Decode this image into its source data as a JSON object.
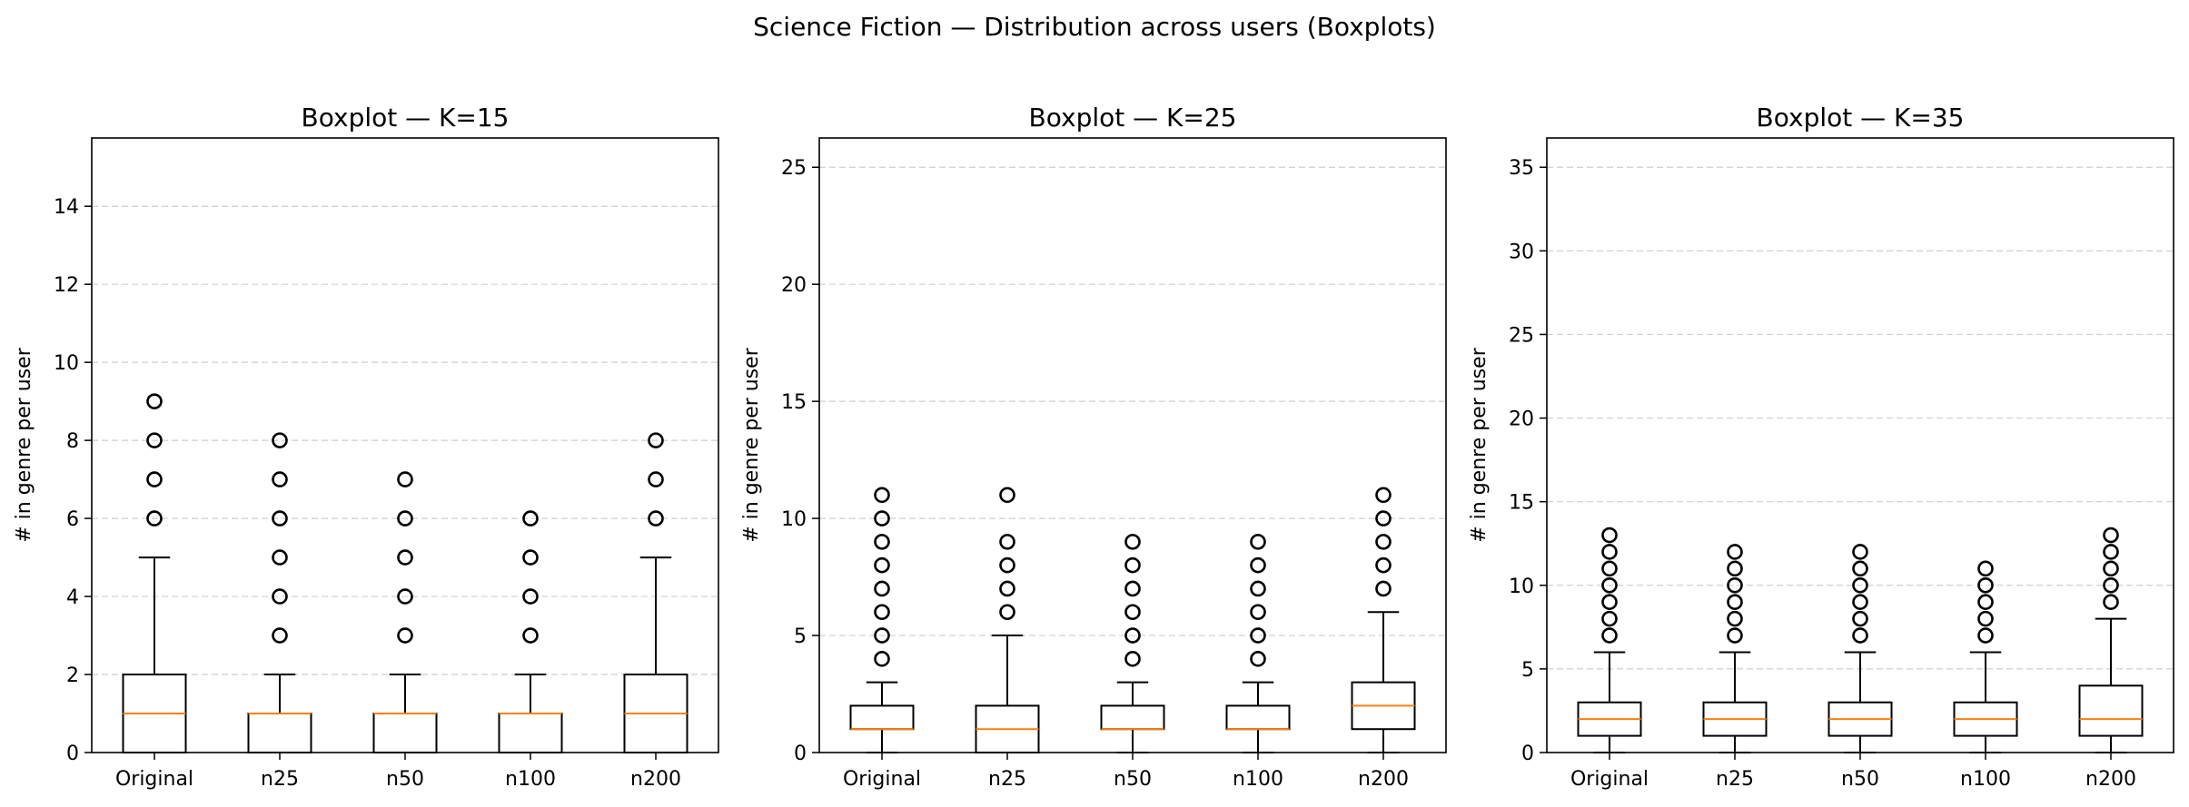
{
  "figure": {
    "title": "Science Fiction — Distribution across users (Boxplots)"
  },
  "chart_data": [
    {
      "type": "boxplot",
      "title": "Boxplot — K=15",
      "xlabel": "",
      "ylabel": "# in genre per user",
      "categories": [
        "Original",
        "n25",
        "n50",
        "n100",
        "n200"
      ],
      "ylim": [
        0,
        15.75
      ],
      "yticks": [
        0,
        2,
        4,
        6,
        8,
        10,
        12,
        14
      ],
      "grid": "y-dashed",
      "boxes": [
        {
          "category": "Original",
          "whisker_low": 0,
          "q1": 0,
          "median": 1,
          "q3": 2,
          "whisker_high": 5,
          "outliers": [
            6,
            7,
            8,
            9
          ]
        },
        {
          "category": "n25",
          "whisker_low": 0,
          "q1": 0,
          "median": 1,
          "q3": 1,
          "whisker_high": 2,
          "outliers": [
            3,
            4,
            5,
            6,
            7,
            8
          ]
        },
        {
          "category": "n50",
          "whisker_low": 0,
          "q1": 0,
          "median": 1,
          "q3": 1,
          "whisker_high": 2,
          "outliers": [
            3,
            4,
            5,
            6,
            7
          ]
        },
        {
          "category": "n100",
          "whisker_low": 0,
          "q1": 0,
          "median": 1,
          "q3": 1,
          "whisker_high": 2,
          "outliers": [
            3,
            4,
            5,
            6
          ]
        },
        {
          "category": "n200",
          "whisker_low": 0,
          "q1": 0,
          "median": 1,
          "q3": 2,
          "whisker_high": 5,
          "outliers": [
            6,
            7,
            8
          ]
        }
      ]
    },
    {
      "type": "boxplot",
      "title": "Boxplot — K=25",
      "xlabel": "",
      "ylabel": "# in genre per user",
      "categories": [
        "Original",
        "n25",
        "n50",
        "n100",
        "n200"
      ],
      "ylim": [
        0,
        26.25
      ],
      "yticks": [
        0,
        5,
        10,
        15,
        20,
        25
      ],
      "grid": "y-dashed",
      "boxes": [
        {
          "category": "Original",
          "whisker_low": 0,
          "q1": 1,
          "median": 1,
          "q3": 2,
          "whisker_high": 3,
          "outliers": [
            4,
            5,
            6,
            7,
            8,
            9,
            10,
            11
          ]
        },
        {
          "category": "n25",
          "whisker_low": 0,
          "q1": 0,
          "median": 1,
          "q3": 2,
          "whisker_high": 5,
          "outliers": [
            6,
            7,
            8,
            9,
            11
          ]
        },
        {
          "category": "n50",
          "whisker_low": 0,
          "q1": 1,
          "median": 1,
          "q3": 2,
          "whisker_high": 3,
          "outliers": [
            4,
            5,
            6,
            7,
            8,
            9
          ]
        },
        {
          "category": "n100",
          "whisker_low": 0,
          "q1": 1,
          "median": 1,
          "q3": 2,
          "whisker_high": 3,
          "outliers": [
            4,
            5,
            6,
            7,
            8,
            9
          ]
        },
        {
          "category": "n200",
          "whisker_low": 0,
          "q1": 1,
          "median": 2,
          "q3": 3,
          "whisker_high": 6,
          "outliers": [
            7,
            8,
            9,
            10,
            11
          ]
        }
      ]
    },
    {
      "type": "boxplot",
      "title": "Boxplot — K=35",
      "xlabel": "",
      "ylabel": "# in genre per user",
      "categories": [
        "Original",
        "n25",
        "n50",
        "n100",
        "n200"
      ],
      "ylim": [
        0,
        36.75
      ],
      "yticks": [
        0,
        5,
        10,
        15,
        20,
        25,
        30,
        35
      ],
      "grid": "y-dashed",
      "boxes": [
        {
          "category": "Original",
          "whisker_low": 0,
          "q1": 1,
          "median": 2,
          "q3": 3,
          "whisker_high": 6,
          "outliers": [
            7,
            8,
            9,
            10,
            11,
            12,
            13
          ]
        },
        {
          "category": "n25",
          "whisker_low": 0,
          "q1": 1,
          "median": 2,
          "q3": 3,
          "whisker_high": 6,
          "outliers": [
            7,
            8,
            9,
            10,
            11,
            12
          ]
        },
        {
          "category": "n50",
          "whisker_low": 0,
          "q1": 1,
          "median": 2,
          "q3": 3,
          "whisker_high": 6,
          "outliers": [
            7,
            8,
            9,
            10,
            11,
            12
          ]
        },
        {
          "category": "n100",
          "whisker_low": 0,
          "q1": 1,
          "median": 2,
          "q3": 3,
          "whisker_high": 6,
          "outliers": [
            7,
            8,
            9,
            10,
            11
          ]
        },
        {
          "category": "n200",
          "whisker_low": 0,
          "q1": 1,
          "median": 2,
          "q3": 4,
          "whisker_high": 8,
          "outliers": [
            9,
            10,
            11,
            12,
            13
          ]
        }
      ]
    }
  ],
  "colors": {
    "median": "#ff7f0e",
    "box": "#000000",
    "grid": "#b0b0b0"
  }
}
